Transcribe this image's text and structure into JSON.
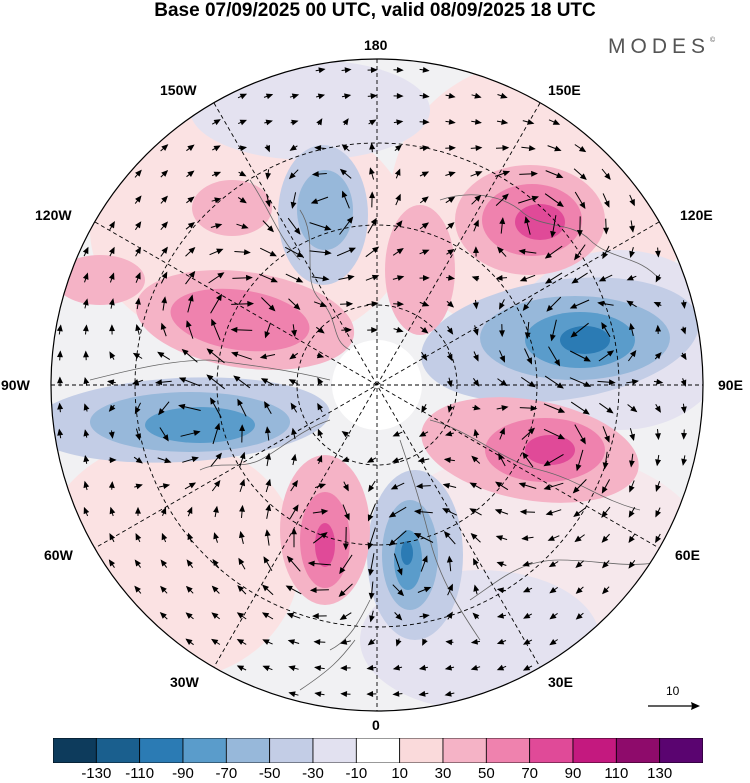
{
  "title": "Base 07/09/2025 00 UTC, valid 08/09/2025 18 UTC",
  "brand": "MODES",
  "brand_mark": "©",
  "longitude_labels": {
    "top": "180",
    "bottom": "0",
    "left": "90W",
    "right": "90E",
    "upper_left_1": "150W",
    "upper_left_2": "120W",
    "upper_right_1": "150E",
    "upper_right_2": "120E",
    "lower_left_1": "60W",
    "lower_left_2": "30W",
    "lower_right_1": "60E",
    "lower_right_2": "30E"
  },
  "vector_scale_label": "10",
  "colorbar": {
    "labels": [
      "-130",
      "-110",
      "-90",
      "-70",
      "-50",
      "-30",
      "-10",
      "10",
      "30",
      "50",
      "70",
      "90",
      "110",
      "130"
    ],
    "colors": [
      "#0d3b5c",
      "#1a5f8e",
      "#2b7bb4",
      "#5a9ccb",
      "#97b8da",
      "#c3cde6",
      "#e2e1f0",
      "#ffffff",
      "#fadadb",
      "#f5b3c6",
      "#ef82ae",
      "#e04a98",
      "#c4197f",
      "#8e0b6b",
      "#5a0470"
    ]
  },
  "colors": {
    "coastline": "#666666",
    "grid": "#000000",
    "arrow": "#000000"
  }
}
